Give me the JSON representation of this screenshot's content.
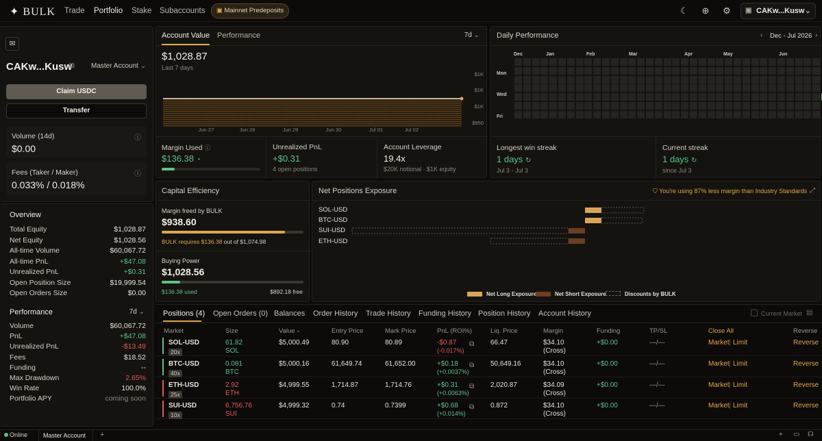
{
  "header": {
    "brand": "BULK",
    "nav": [
      "Trade",
      "Portfolio",
      "Stake",
      "Subaccounts"
    ],
    "predeposit_label": "Mainnet Predeposits",
    "account_label": "CAKw...Kusw",
    "icons": [
      "moon-icon",
      "globe-icon",
      "gear-icon",
      "wallet-icon"
    ]
  },
  "sidebar": {
    "account_name": "CAKw...Kusw",
    "account_select": "Master Account",
    "claim_label": "Claim USDC",
    "transfer_label": "Transfer",
    "volume_label": "Volume (14d)",
    "volume_value": "$0.00",
    "fees_label": "Fees (Taker / Maker)",
    "fees_value": "0.033% / 0.018%",
    "overview_title": "Overview",
    "overview": [
      {
        "label": "Total Equity",
        "value": "$1,028.87"
      },
      {
        "label": "Net Equity",
        "value": "$1,028.56"
      },
      {
        "label": "All-time Volume",
        "value": "$60,067.72"
      },
      {
        "label": "All-time PnL",
        "value": "+$47.08"
      },
      {
        "label": "Unrealized PnL",
        "value": "+$0.31"
      },
      {
        "label": "Open Position Size",
        "value": "$19,999.54"
      },
      {
        "label": "Open Orders Size",
        "value": "$0.00"
      }
    ],
    "performance_title": "Performance",
    "performance_range": "7d",
    "performance": [
      {
        "label": "Volume",
        "value": "$60,067.72"
      },
      {
        "label": "PnL",
        "value": "+$47.08"
      },
      {
        "label": "Unrealized PnL",
        "value": "-$13.49"
      },
      {
        "label": "Fees",
        "value": "$18.52"
      },
      {
        "label": "Funding",
        "value": "--"
      },
      {
        "label": "Max Drawdown",
        "value": "2.65%"
      },
      {
        "label": "Win Rate",
        "value": "100.0%"
      },
      {
        "label": "Portfolio APY",
        "value": "coming soon"
      }
    ]
  },
  "account_value": {
    "tab_active": "Account Value",
    "tab_other": "Performance",
    "range": "7d",
    "value": "$1,028.87",
    "sub": "Last 7 days",
    "y_ticks": [
      "$1K",
      "$1K",
      "$1K",
      "$950"
    ],
    "x_ticks": [
      "Jun 27",
      "Jun 28",
      "Jun 29",
      "Jun 30",
      "Jul 01",
      "Jul 02"
    ]
  },
  "chart_data": {
    "type": "area",
    "x": [
      "Jun 27",
      "Jun 28",
      "Jun 29",
      "Jun 30",
      "Jul 01",
      "Jul 02"
    ],
    "series": [
      {
        "values": [
          1028.87,
          1028.87,
          1028.87,
          1028.87,
          1028.87,
          1028.87
        ]
      }
    ],
    "y_tick_labels": [
      "$1K",
      "$1K",
      "$1K",
      "$950"
    ]
  },
  "stats": {
    "margin_label": "Margin Used",
    "margin_value": "$136.38",
    "margin_fill": 0.13,
    "upnl_label": "Unrealized PnL",
    "upnl_value": "+$0.31",
    "upnl_sub": "4 open positions",
    "lev_label": "Account Leverage",
    "lev_value": "19.4x",
    "lev_sub": "$20K notional · $1K equity"
  },
  "daily": {
    "title": "Daily Performance",
    "range": "Dec - Jul 2026",
    "months": [
      "Dec",
      "Jan",
      "Feb",
      "Mar",
      "Apr",
      "May",
      "Jun"
    ],
    "days": [
      "Mon",
      "Wed",
      "Fri"
    ],
    "win_label": "Longest win streak",
    "win_value": "1 days",
    "win_sub": "Jul 3 - Jul 3",
    "cur_label": "Current streak",
    "cur_value": "1 days",
    "cur_sub": "since Jul 3"
  },
  "capital": {
    "title": "Capital Efficiency",
    "freed_label": "Margin freed by BULK",
    "freed_value": "$938.60",
    "freed_fill": 0.87,
    "requires_prefix": "BULK requires $136.38",
    "requires_suffix": "out of $1,074.98",
    "bp_label": "Buying Power",
    "bp_value": "$1,028.56",
    "bp_fill": 0.13,
    "bp_used": "$136.38 used",
    "bp_free": "$892.18 free"
  },
  "exposure": {
    "title": "Net Positions Exposure",
    "badge": "You're using 87% less margin than Industry Standards",
    "markets": [
      "SOL-USD",
      "BTC-USD",
      "SUI-USD",
      "ETH-USD"
    ],
    "legend": [
      "Net Long Exposure",
      "Net Short Exposure",
      "Discounts by BULK"
    ],
    "colors": {
      "long": "#d9a55a",
      "short": "#6b3f22"
    }
  },
  "positions": {
    "tabs": [
      "Positions (4)",
      "Open Orders (0)",
      "Balances",
      "Order History",
      "Trade History",
      "Funding History",
      "Position History",
      "Account History"
    ],
    "current_market": "Current Market",
    "columns": [
      "Market",
      "Size",
      "Value",
      "Entry Price",
      "Mark Price",
      "PnL (ROI%)",
      "Liq. Price",
      "Margin",
      "Funding",
      "TP/SL",
      "Close All",
      "Reverse"
    ],
    "rows": [
      {
        "market": "SOL-USD",
        "lev": "20x",
        "size": "61.82",
        "unit": "SOL",
        "value": "$5,000.49",
        "entry": "80.90",
        "mark": "80.89",
        "pnl": "-$0.87",
        "roi": "(-0.017%)",
        "liq": "66.47",
        "margin": "$34.10",
        "mode": "(Cross)",
        "funding": "+$0.00",
        "tpsl": "—/—",
        "close_m": "Market",
        "close_l": "Limit",
        "reverse": "Reverse",
        "side": "long"
      },
      {
        "market": "BTC-USD",
        "lev": "40x",
        "size": "0.081",
        "unit": "BTC",
        "value": "$5,000.16",
        "entry": "61,649.74",
        "mark": "61,652.00",
        "pnl": "+$0.18",
        "roi": "(+0.0037%)",
        "liq": "50,649.16",
        "margin": "$34.10",
        "mode": "(Cross)",
        "funding": "+$0.00",
        "tpsl": "—/—",
        "close_m": "Market",
        "close_l": "Limit",
        "reverse": "Reverse",
        "side": "long"
      },
      {
        "market": "ETH-USD",
        "lev": "25x",
        "size": "2.92",
        "unit": "ETH",
        "value": "$4,999.55",
        "entry": "1,714.87",
        "mark": "1,714.76",
        "pnl": "+$0.31",
        "roi": "(+0.0063%)",
        "liq": "2,020.87",
        "margin": "$34.09",
        "mode": "(Cross)",
        "funding": "+$0.00",
        "tpsl": "—/—",
        "close_m": "Market",
        "close_l": "Limit",
        "reverse": "Reverse",
        "side": "short"
      },
      {
        "market": "SUI-USD",
        "lev": "10x",
        "size": "6,756.76",
        "unit": "SUI",
        "value": "$4,999.32",
        "entry": "0.74",
        "mark": "0.7399",
        "pnl": "+$0.68",
        "roi": "(+0.014%)",
        "liq": "0.872",
        "margin": "$34.10",
        "mode": "(Cross)",
        "funding": "+$0.00",
        "tpsl": "—/—",
        "close_m": "Market",
        "close_l": "Limit",
        "reverse": "Reverse",
        "side": "short"
      }
    ]
  },
  "footer": {
    "status": "Online",
    "tab": "Master Account",
    "add": "+"
  }
}
